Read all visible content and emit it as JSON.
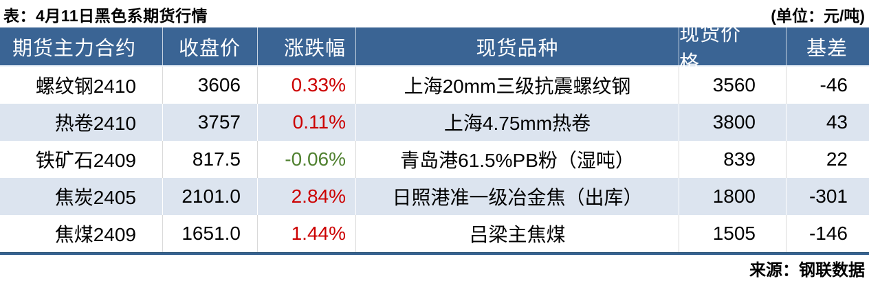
{
  "title": "表：4月11日黑色系期货行情",
  "unit_note": "(单位：元/吨)",
  "source": "来源：钢联数据",
  "colors": {
    "header_bg": "#3A6494",
    "stripe_bg": "#DCE4EF",
    "up_red": "#CC0000",
    "down_green": "#508130",
    "bottom_rule": "#35618F"
  },
  "table": {
    "headers": [
      "期货主力合约",
      "收盘价",
      "涨跌幅",
      "现货品种",
      "现货价格",
      "基差"
    ],
    "rows": [
      {
        "contract": "螺纹钢2410",
        "close": "3606",
        "change": "0.33%",
        "change_color": "#CC0000",
        "spot": "上海20mm三级抗震螺纹钢",
        "spot_price": "3560",
        "basis": "-46"
      },
      {
        "contract": "热卷2410",
        "close": "3757",
        "change": "0.11%",
        "change_color": "#CC0000",
        "spot": "上海4.75mm热卷",
        "spot_price": "3800",
        "basis": "43"
      },
      {
        "contract": "铁矿石2409",
        "close": "817.5",
        "change": "-0.06%",
        "change_color": "#508130",
        "spot": "青岛港61.5%PB粉（湿吨）",
        "spot_price": "839",
        "basis": "22"
      },
      {
        "contract": "焦炭2405",
        "close": "2101.0",
        "change": "2.84%",
        "change_color": "#CC0000",
        "spot": "日照港准一级冶金焦（出库）",
        "spot_price": "1800",
        "basis": "-301"
      },
      {
        "contract": "焦煤2409",
        "close": "1651.0",
        "change": "1.44%",
        "change_color": "#CC0000",
        "spot": "吕梁主焦煤",
        "spot_price": "1505",
        "basis": "-146"
      }
    ]
  },
  "chart_data": {
    "type": "table",
    "title": "表：4月11日黑色系期货行情",
    "unit": "元/吨",
    "source": "来源：钢联数据",
    "columns": [
      "期货主力合约",
      "收盘价",
      "涨跌幅",
      "现货品种",
      "现货价格",
      "基差"
    ],
    "rows": [
      [
        "螺纹钢2410",
        3606,
        "0.33%",
        "上海20mm三级抗震螺纹钢",
        3560,
        -46
      ],
      [
        "热卷2410",
        3757,
        "0.11%",
        "上海4.75mm热卷",
        3800,
        43
      ],
      [
        "铁矿石2409",
        817.5,
        "-0.06%",
        "青岛港61.5%PB粉（湿吨）",
        839,
        22
      ],
      [
        "焦炭2405",
        2101.0,
        "2.84%",
        "日照港准一级冶金焦（出库）",
        1800,
        -301
      ],
      [
        "焦煤2409",
        1651.0,
        "1.44%",
        "吕梁主焦煤",
        1505,
        -146
      ]
    ],
    "layout": {
      "striped_rows": [
        2,
        4
      ],
      "change_color_rule": "positive=red #CC0000, negative=green #508130"
    }
  }
}
